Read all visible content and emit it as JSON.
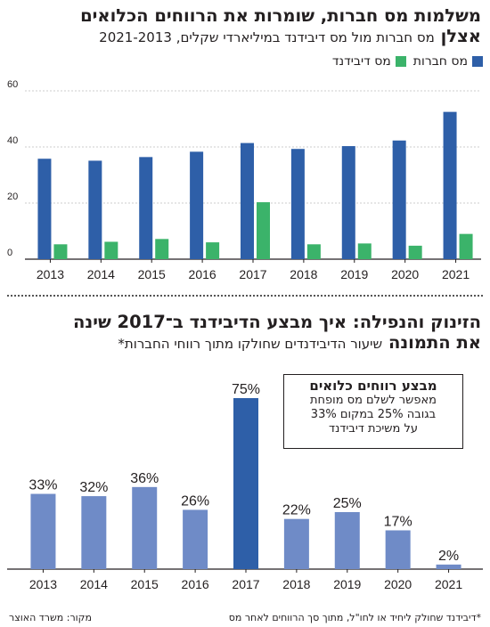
{
  "top": {
    "title": "משלמות מס חברות, שומרות את הרווחים הכלואים",
    "subtitle_bold": "אצלן",
    "subtitle": "מס חברות מול מס דיבידנד במיליארדי שקלים, 2021-2013",
    "legend": [
      {
        "label": "מס חברות",
        "color": "#2e5fa8"
      },
      {
        "label": "מס דיבידנד",
        "color": "#3bb36a"
      }
    ]
  },
  "bottom": {
    "title": "הזינוק והנפילה: איך מבצע הדיבידנד ב־2017 שינה",
    "subtitle_bold": "את התמונה",
    "subtitle": "שיעור הדיבידנדים שחולקו מתוך רווחי החברות*",
    "callout": {
      "title": "מבצע רווחים כלואים",
      "lines": [
        "מאפשר לשלם מס מופחת",
        "בגובה 25% במקום 33%",
        "על משיכת דיבידנד"
      ]
    }
  },
  "footer": {
    "note": "*דיבידנד שחולק ליחיד או לחו\"ל, מתוך סך הרווחים לאחר מס",
    "source": "מקור: משרד האוצר"
  },
  "chart_data": [
    {
      "type": "bar",
      "categories": [
        "2013",
        "2014",
        "2015",
        "2016",
        "2017",
        "2018",
        "2019",
        "2020",
        "2021"
      ],
      "series": [
        {
          "name": "מס חברות",
          "color": "#2e5fa8",
          "values": [
            35.8,
            35.1,
            36.4,
            38.3,
            41.4,
            39.3,
            40.3,
            42.3,
            52.5
          ]
        },
        {
          "name": "מס דיבידנד",
          "color": "#3bb36a",
          "values": [
            5.3,
            6.2,
            7.2,
            6.0,
            20.3,
            5.3,
            5.6,
            4.8,
            9.0
          ]
        }
      ],
      "ylim": [
        0,
        60
      ],
      "yticks": [
        0,
        20,
        40,
        60
      ],
      "grid": true
    },
    {
      "type": "bar",
      "categories": [
        "2013",
        "2014",
        "2015",
        "2016",
        "2017",
        "2018",
        "2019",
        "2020",
        "2021"
      ],
      "values": [
        33,
        32,
        36,
        26,
        75,
        22,
        25,
        17,
        2
      ],
      "value_labels": [
        "33%",
        "32%",
        "36%",
        "26%",
        "75%",
        "22%",
        "25%",
        "17%",
        "2%"
      ],
      "colors": {
        "default": "#6f8bc7",
        "highlight": "#2e5fa8"
      },
      "highlight_index": 4,
      "ylim": [
        0,
        80
      ]
    }
  ]
}
